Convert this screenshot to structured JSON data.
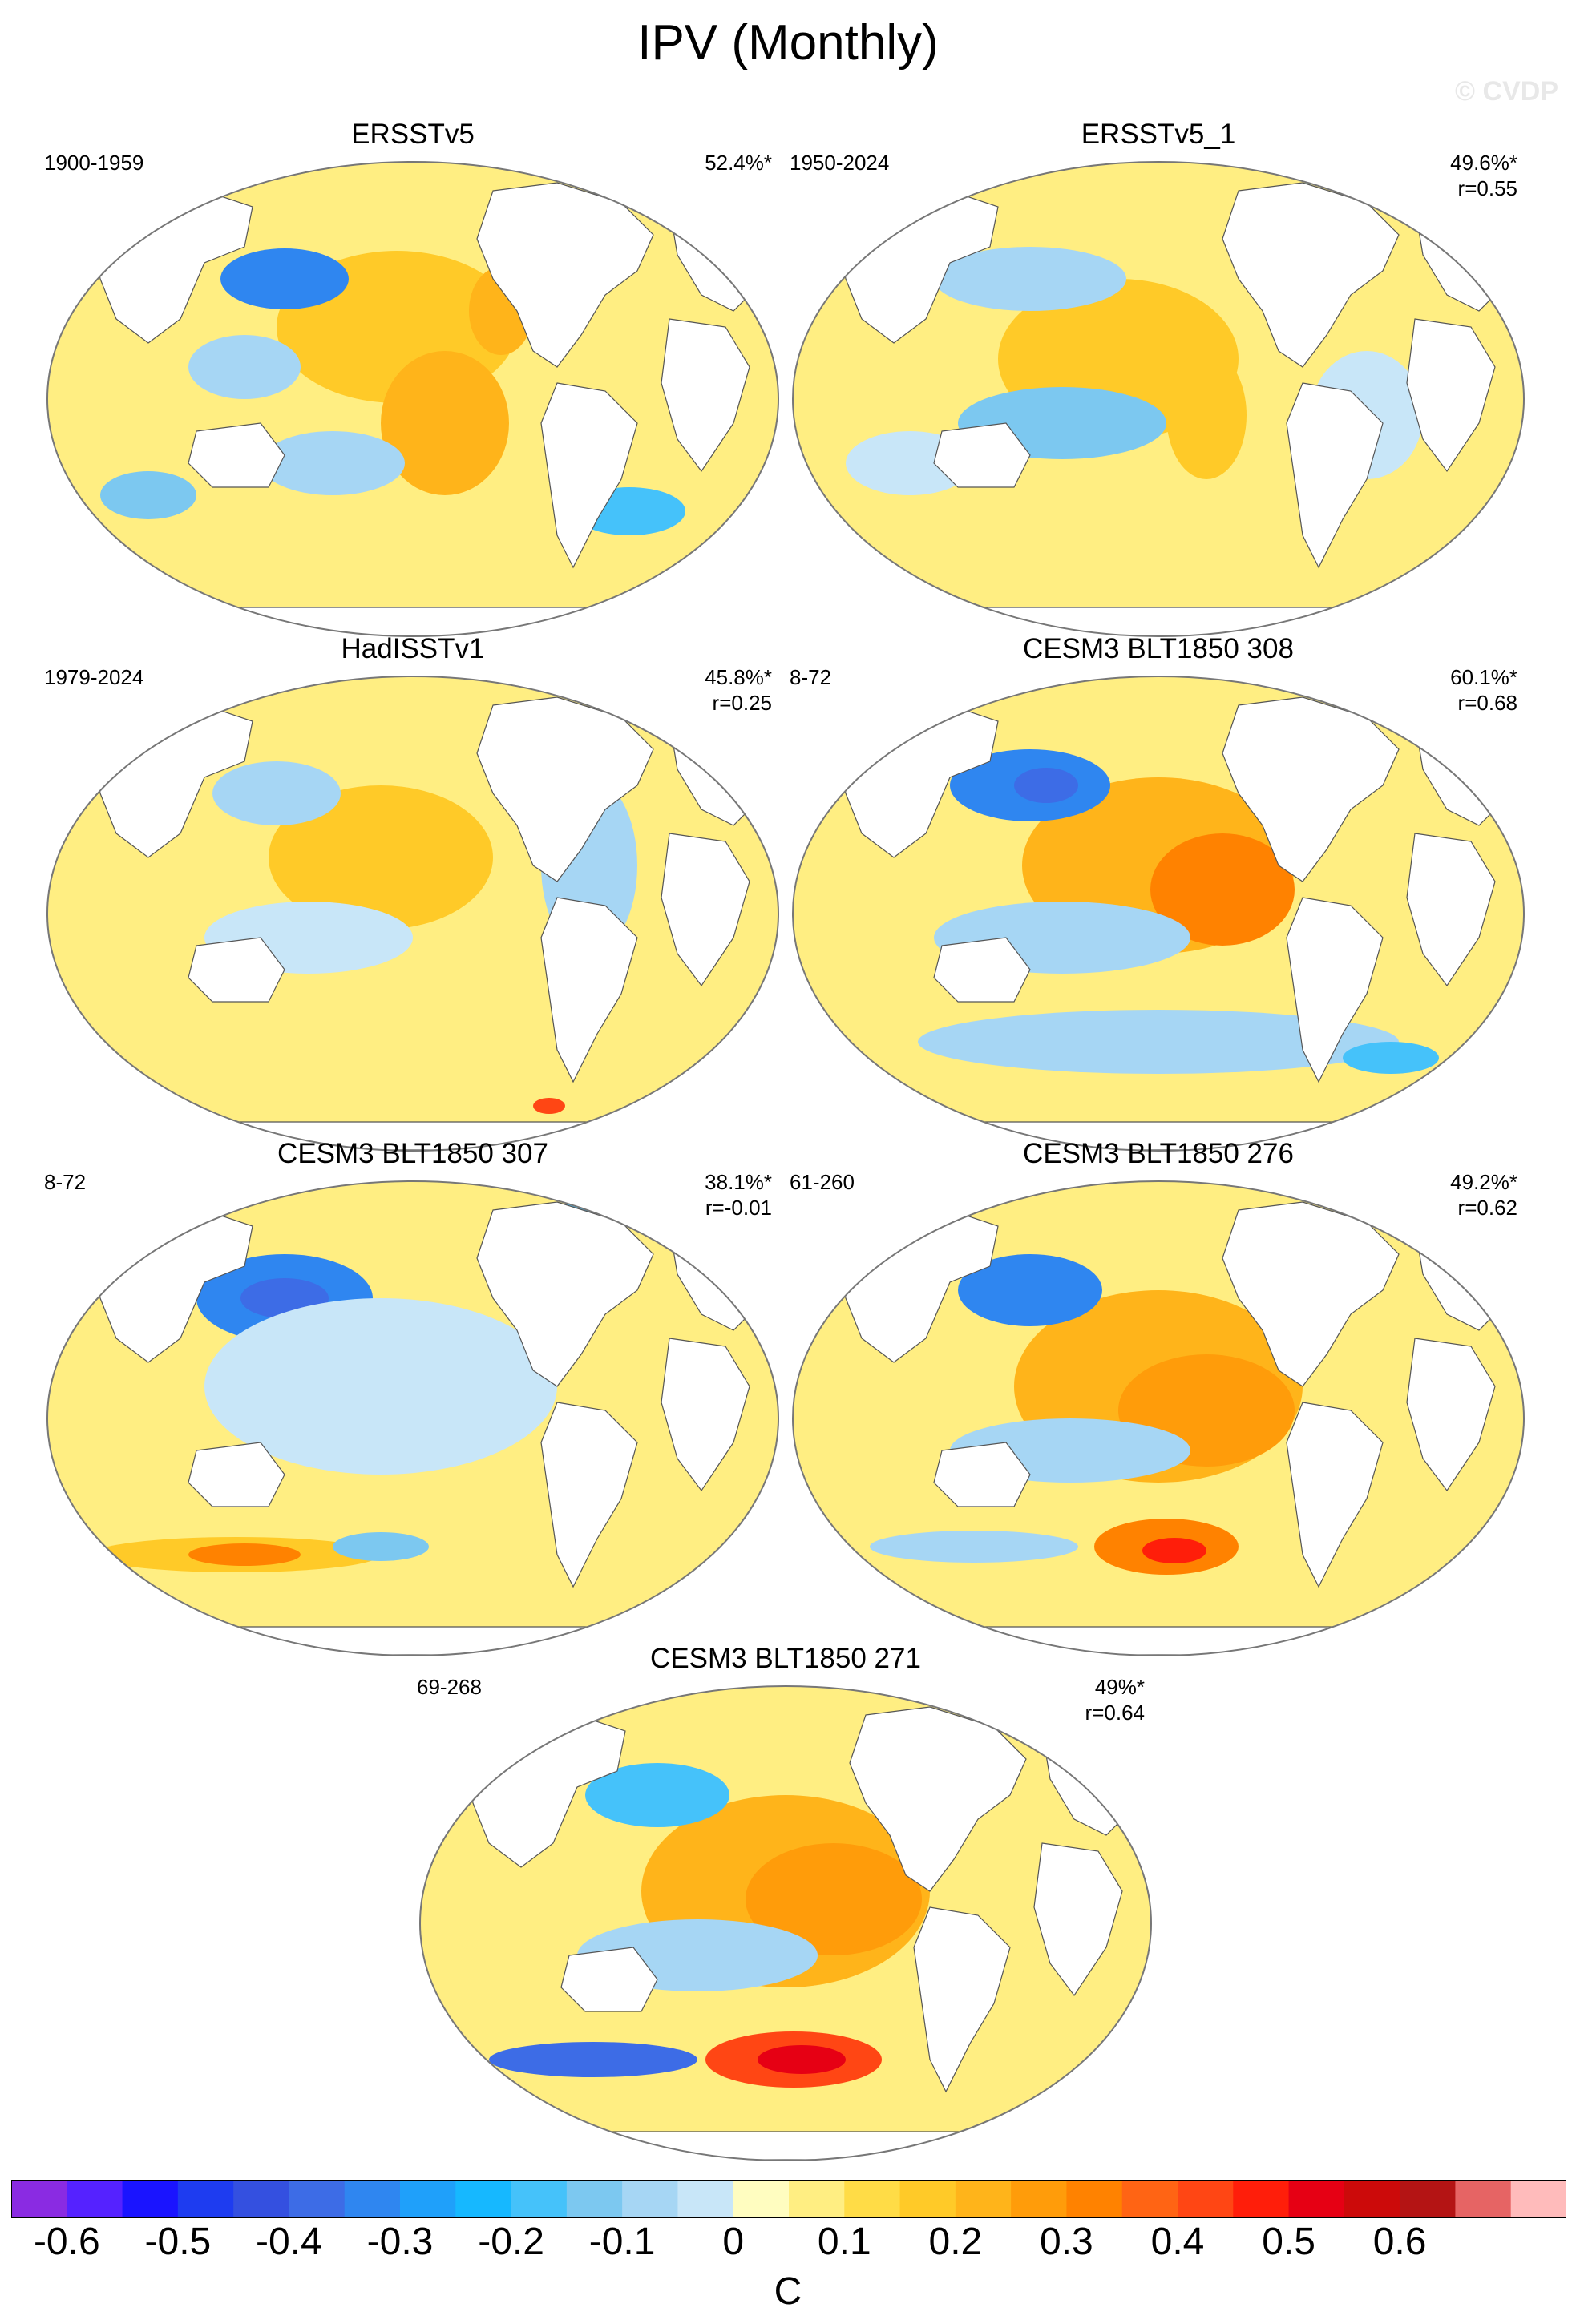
{
  "title": "IPV (Monthly)",
  "copyright": "© CVDP",
  "colors": {
    "land": "#ffffff",
    "coast": "#555555",
    "outline": "#777777"
  },
  "panels": [
    {
      "id": "ersstv5",
      "title": "ERSSTv5",
      "period": "1900-1959",
      "pct": "52.4%*",
      "r": ""
    },
    {
      "id": "ersstv5_1",
      "title": "ERSSTv5_1",
      "period": "1950-2024",
      "pct": "49.6%*",
      "r": "r=0.55"
    },
    {
      "id": "hadisstv1",
      "title": "HadISSTv1",
      "period": "1979-2024",
      "pct": "45.8%*",
      "r": "r=0.25"
    },
    {
      "id": "cesm3_308",
      "title": "CESM3 BLT1850 308",
      "period": "8-72",
      "pct": "60.1%*",
      "r": "r=0.68"
    },
    {
      "id": "cesm3_307",
      "title": "CESM3 BLT1850 307",
      "period": "8-72",
      "pct": "38.1%*",
      "r": "r=-0.01"
    },
    {
      "id": "cesm3_276",
      "title": "CESM3 BLT1850 276",
      "period": "61-260",
      "pct": "49.2%*",
      "r": "r=0.62"
    },
    {
      "id": "cesm3_271",
      "title": "CESM3 BLT1850 271",
      "period": "69-268",
      "pct": "49%*",
      "r": "r=0.64"
    }
  ],
  "colorbar": {
    "colors": [
      "#8a2be2",
      "#5522ff",
      "#1a14ff",
      "#1e3cf0",
      "#3450e0",
      "#3d6ce6",
      "#2f86f0",
      "#1fa0fa",
      "#16b8ff",
      "#45c2fa",
      "#7cc8f0",
      "#a6d6f4",
      "#c8e6f8",
      "#fffdc0",
      "#ffee82",
      "#ffdc46",
      "#ffca28",
      "#ffb41a",
      "#ff9c0a",
      "#ff8200",
      "#ff6414",
      "#ff4614",
      "#ff1e0a",
      "#e60014",
      "#cc0a0a",
      "#b41414",
      "#e66464",
      "#ffbbbb"
    ],
    "ticks": [
      "-0.6",
      "-0.5",
      "-0.4",
      "-0.3",
      "-0.2",
      "-0.1",
      "0",
      "0.1",
      "0.2",
      "0.3",
      "0.4",
      "0.5",
      "0.6"
    ],
    "unit": "C"
  }
}
